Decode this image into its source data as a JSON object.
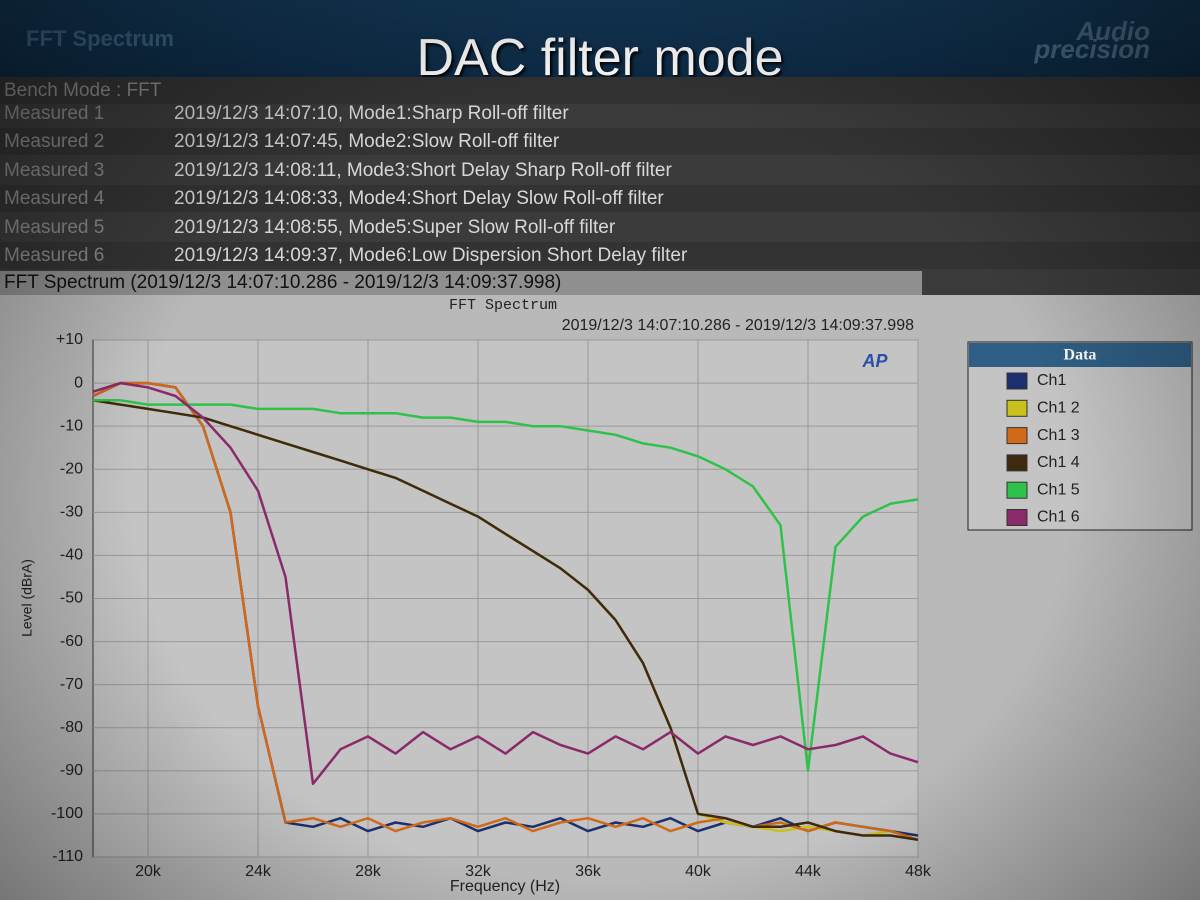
{
  "header": {
    "app_title": "FFT Spectrum",
    "title": "DAC filter mode",
    "logo": "Audio precision"
  },
  "bench_mode": "Bench Mode : FFT",
  "measurements": [
    {
      "label": "Measured 1",
      "detail": "2019/12/3 14:07:10, Mode1:Sharp Roll-off filter"
    },
    {
      "label": "Measured 2",
      "detail": "2019/12/3 14:07:45, Mode2:Slow Roll-off filter"
    },
    {
      "label": "Measured 3",
      "detail": "2019/12/3 14:08:11, Mode3:Short Delay Sharp Roll-off filter"
    },
    {
      "label": "Measured 4",
      "detail": "2019/12/3 14:08:33, Mode4:Short Delay Slow Roll-off filter"
    },
    {
      "label": "Measured 5",
      "detail": "2019/12/3 14:08:55, Mode5:Super Slow Roll-off filter"
    },
    {
      "label": "Measured 6",
      "detail": "2019/12/3 14:09:37, Mode6:Low Dispersion Short Delay filter"
    }
  ],
  "section_title": "FFT Spectrum (2019/12/3 14:07:10.286 - 2019/12/3 14:09:37.998)",
  "chart_data": {
    "type": "line",
    "title": "FFT Spectrum",
    "subtitle": "2019/12/3 14:07:10.286 - 2019/12/3 14:09:37.998",
    "x_label": "Frequency (Hz)",
    "y_label": "Level (dBrA)",
    "logo": "AP",
    "legend_title": "Data",
    "grid": true,
    "xlim": [
      18000,
      48000
    ],
    "xticks": [
      {
        "value": 20000,
        "label": "20k"
      },
      {
        "value": 24000,
        "label": "24k"
      },
      {
        "value": 28000,
        "label": "28k"
      },
      {
        "value": 32000,
        "label": "32k"
      },
      {
        "value": 36000,
        "label": "36k"
      },
      {
        "value": 40000,
        "label": "40k"
      },
      {
        "value": 44000,
        "label": "44k"
      },
      {
        "value": 48000,
        "label": "48k"
      }
    ],
    "ylim": [
      -110,
      10
    ],
    "yticks": [
      {
        "value": 10,
        "label": "+10"
      },
      0,
      -10,
      -20,
      -30,
      -40,
      -50,
      -60,
      -70,
      -80,
      -90,
      -100,
      -110
    ],
    "x": [
      18000,
      19000,
      20000,
      21000,
      22000,
      23000,
      24000,
      25000,
      26000,
      27000,
      28000,
      29000,
      30000,
      31000,
      32000,
      33000,
      34000,
      35000,
      36000,
      37000,
      38000,
      39000,
      40000,
      41000,
      42000,
      43000,
      44000,
      45000,
      46000,
      47000,
      48000
    ],
    "series": [
      {
        "name": "Ch1",
        "color": "#1c2f6e",
        "values": [
          -3,
          0,
          0,
          -1,
          -10,
          -30,
          -75,
          -102,
          -103,
          -101,
          -104,
          -102,
          -103,
          -101,
          -104,
          -102,
          -103,
          -101,
          -104,
          -102,
          -103,
          -101,
          -104,
          -102,
          -103,
          -101,
          -104,
          -102,
          -103,
          -104,
          -105
        ]
      },
      {
        "name": "Ch1 2",
        "color": "#c9c01e",
        "values": [
          -4,
          -5,
          -6,
          -7,
          -8,
          -10,
          -12,
          -14,
          -16,
          -18,
          -20,
          -22,
          -25,
          -28,
          -31,
          -35,
          -39,
          -43,
          -48,
          -55,
          -65,
          -80,
          -100,
          -102,
          -103,
          -104,
          -103,
          -104,
          -105,
          -104,
          -106
        ]
      },
      {
        "name": "Ch1 3",
        "color": "#d0691a",
        "values": [
          -3,
          0,
          0,
          -1,
          -10,
          -30,
          -75,
          -102,
          -101,
          -103,
          -101,
          -104,
          -102,
          -101,
          -103,
          -101,
          -104,
          -102,
          -101,
          -103,
          -101,
          -104,
          -102,
          -101,
          -103,
          -102,
          -104,
          -102,
          -103,
          -104,
          -106
        ]
      },
      {
        "name": "Ch1 4",
        "color": "#3d2a10",
        "values": [
          -4,
          -5,
          -6,
          -7,
          -8,
          -10,
          -12,
          -14,
          -16,
          -18,
          -20,
          -22,
          -25,
          -28,
          -31,
          -35,
          -39,
          -43,
          -48,
          -55,
          -65,
          -80,
          -100,
          -101,
          -103,
          -103,
          -102,
          -104,
          -105,
          -105,
          -106
        ]
      },
      {
        "name": "Ch1 5",
        "color": "#2fc24a",
        "values": [
          -4,
          -4,
          -5,
          -5,
          -5,
          -5,
          -6,
          -6,
          -6,
          -7,
          -7,
          -7,
          -8,
          -8,
          -9,
          -9,
          -10,
          -10,
          -11,
          -12,
          -14,
          -15,
          -17,
          -20,
          -24,
          -33,
          -90,
          -38,
          -31,
          -28,
          -27
        ]
      },
      {
        "name": "Ch1 6",
        "color": "#8a2a6a",
        "values": [
          -2,
          0,
          -1,
          -3,
          -8,
          -15,
          -25,
          -45,
          -93,
          -85,
          -82,
          -86,
          -81,
          -85,
          -82,
          -86,
          -81,
          -84,
          -86,
          -82,
          -85,
          -81,
          -86,
          -82,
          -84,
          -82,
          -85,
          -84,
          -82,
          -86,
          -88
        ]
      }
    ]
  }
}
